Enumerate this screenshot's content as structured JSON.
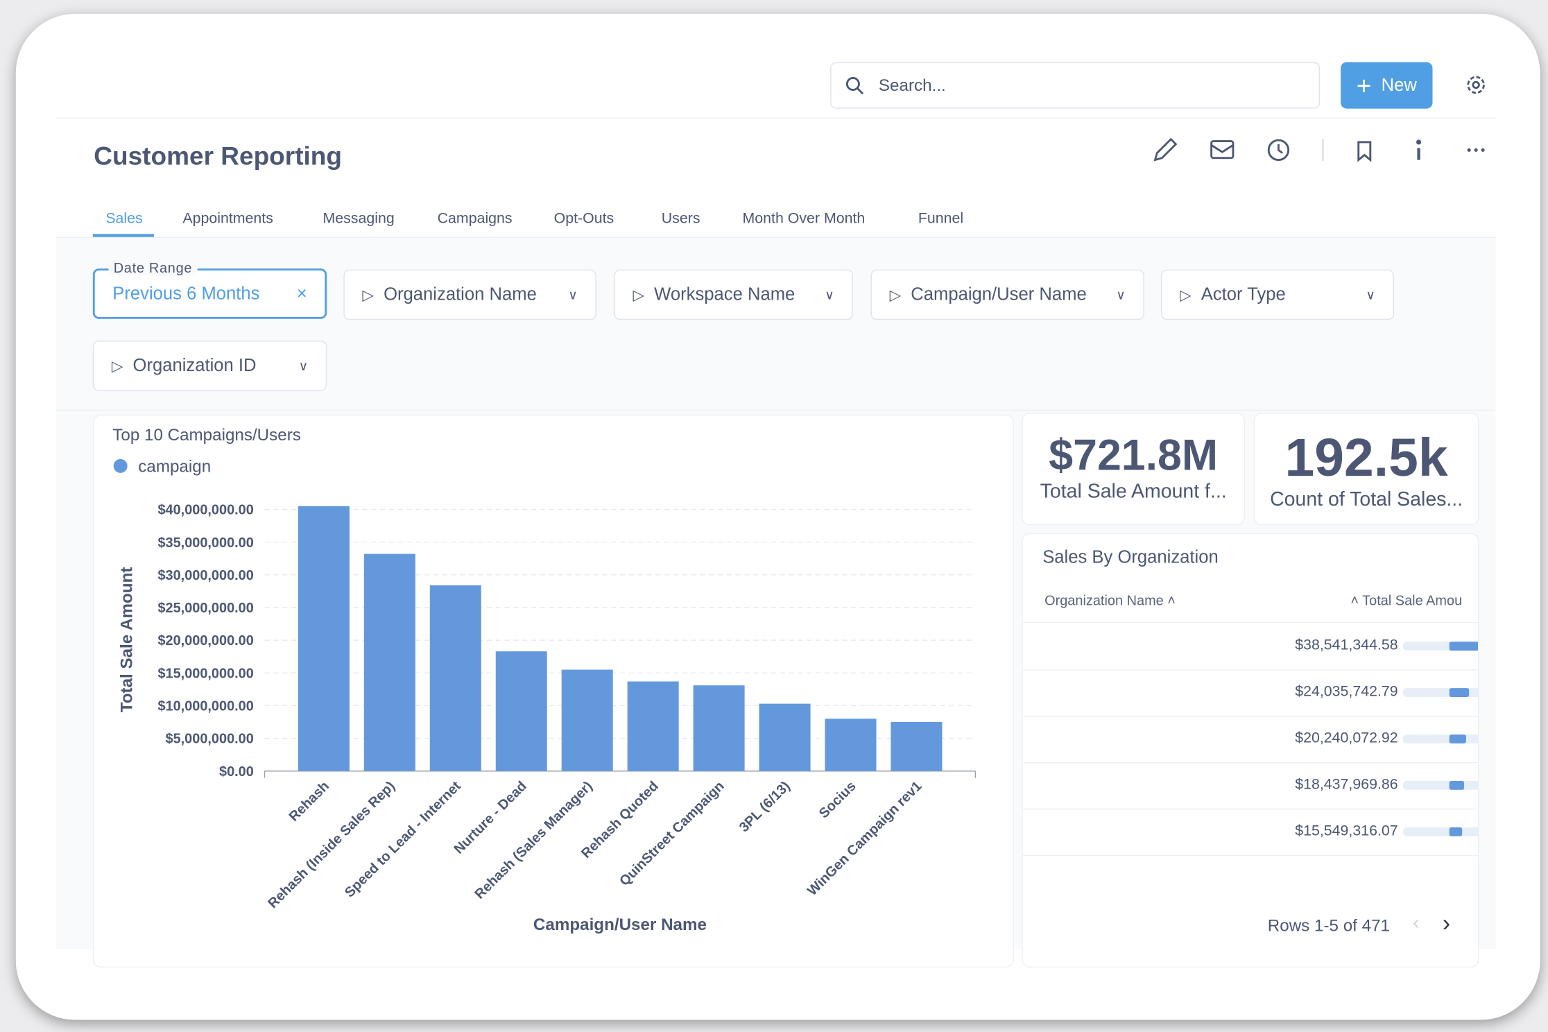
{
  "search": {
    "placeholder": "Search..."
  },
  "new_button": "New",
  "header": {
    "title": "Customer Reporting"
  },
  "tabs": [
    "Sales",
    "Appointments",
    "Messaging",
    "Campaigns",
    "Opt-Outs",
    "Users",
    "Month Over Month",
    "Funnel"
  ],
  "filters": [
    {
      "label": "Date Range",
      "value": "Previous 6 Months"
    },
    {
      "value": "Organization Name"
    },
    {
      "value": "Workspace Name"
    },
    {
      "value": "Campaign/User Name"
    },
    {
      "value": "Actor Type"
    },
    {
      "value": "Organization ID"
    }
  ],
  "chart_data": {
    "type": "bar",
    "title": "Top 10 Campaigns/Users",
    "y_label": "Total Sale Amount",
    "x_label": "Campaign/User Name",
    "series": [
      {
        "name": "campaign",
        "color": "#6399dc",
        "values": [
          40500000,
          33200000,
          28400000,
          18300000,
          15500000,
          13700000,
          13100000,
          10300000,
          8000000,
          7500000
        ]
      }
    ],
    "categories": [
      "Rehash",
      "Rehash (Inside Sales Rep)",
      "Speed to Lead - Internet",
      "Nurture - Dead",
      "Rehash (Sales Manager)",
      "Rehash Quoted",
      "QuinStreet Campaign",
      "3PL (6/13)",
      "Socius",
      "WinGen Campaign rev1"
    ],
    "ylim": [
      0,
      40000000
    ],
    "yticks": [
      {
        "value": 0,
        "label": "$0.00"
      },
      {
        "value": 5000000,
        "label": "$5,000,000.00"
      },
      {
        "value": 10000000,
        "label": "$10,000,000.00"
      },
      {
        "value": 15000000,
        "label": "$15,000,000.00"
      },
      {
        "value": 20000000,
        "label": "$20,000,000.00"
      },
      {
        "value": 25000000,
        "label": "$25,000,000.00"
      },
      {
        "value": 30000000,
        "label": "$30,000,000.00"
      },
      {
        "value": 35000000,
        "label": "$35,000,000.00"
      },
      {
        "value": 40000000,
        "label": "$40,000,000.00"
      }
    ],
    "grid": true
  },
  "kpis": [
    {
      "value": "$721.8M",
      "label": "Total Sale Amount f..."
    },
    {
      "value": "192.5k",
      "label": "Count of Total Sales..."
    }
  ],
  "table": {
    "title": "Sales By Organization",
    "columns": [
      "Organization Name",
      "Total Sale Amou"
    ],
    "rows": [
      {
        "value": 38541344.58,
        "label": "$38,541,344.58"
      },
      {
        "value": 24035742.79,
        "label": "$24,035,742.79"
      },
      {
        "value": 20240072.92,
        "label": "$20,240,072.92"
      },
      {
        "value": 18437969.86,
        "label": "$18,437,969.86"
      },
      {
        "value": 15549316.07,
        "label": "$15,549,316.07"
      }
    ],
    "footer": "Rows 1-5 of 471"
  }
}
